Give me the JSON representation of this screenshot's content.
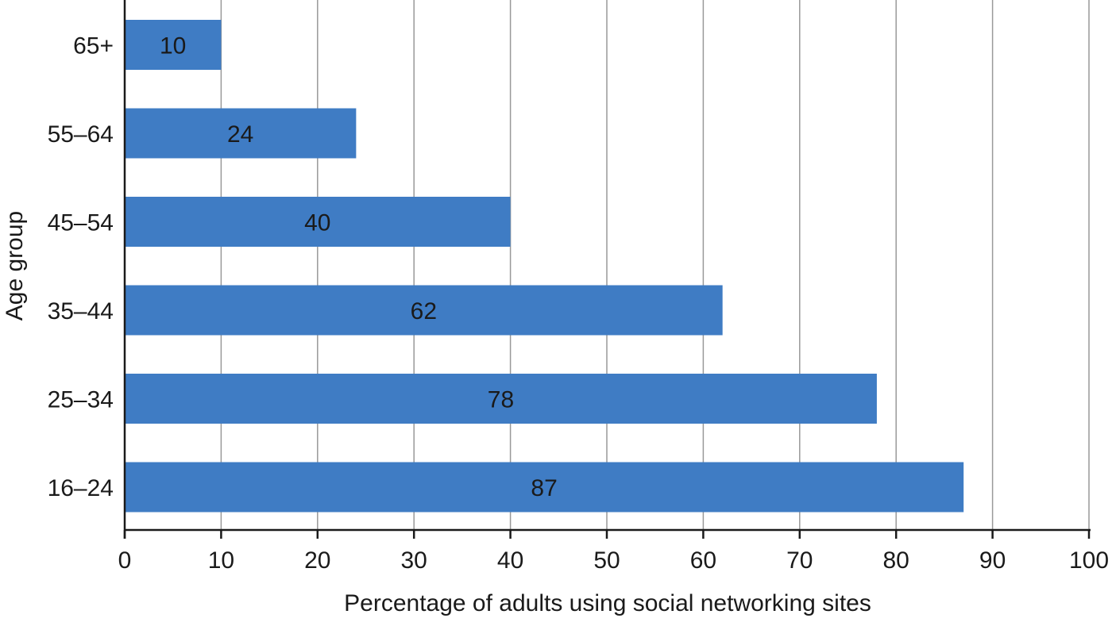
{
  "chart_data": {
    "type": "bar",
    "orientation": "horizontal",
    "title": "",
    "xlabel": "Percentage of adults using social networking sites",
    "ylabel": "Age group",
    "categories": [
      "65+",
      "55–64",
      "45–54",
      "35–44",
      "25–34",
      "16–24"
    ],
    "values": [
      10,
      24,
      40,
      62,
      78,
      87
    ],
    "data_labels": [
      "10",
      "24",
      "40",
      "62",
      "78",
      "87"
    ],
    "xlim": [
      0,
      100
    ],
    "xticks": [
      0,
      10,
      20,
      30,
      40,
      50,
      60,
      70,
      80,
      90,
      100
    ],
    "xtick_labels": [
      "0",
      "10",
      "20",
      "30",
      "40",
      "50",
      "60",
      "70",
      "80",
      "90",
      "100"
    ],
    "grid": "vertical",
    "legend": "none",
    "colors": {
      "bar": "#3f7cc4",
      "grid": "#999999",
      "axis": "#1a1a1a"
    }
  }
}
